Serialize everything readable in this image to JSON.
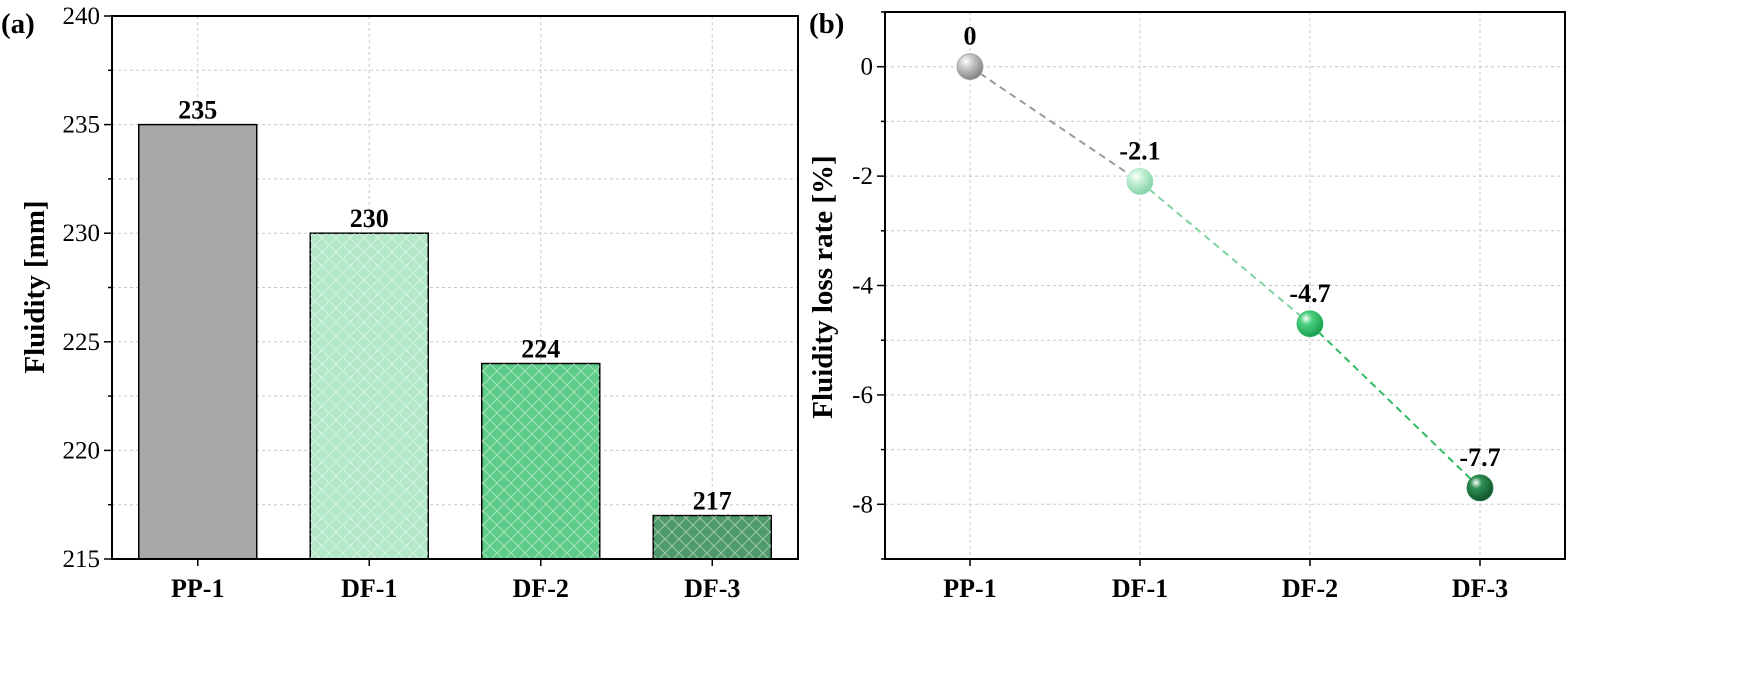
{
  "chart_data": [
    {
      "panel": "(a)",
      "type": "bar",
      "categories": [
        "PP-1",
        "DF-1",
        "DF-2",
        "DF-3"
      ],
      "values": [
        235,
        230,
        224,
        217
      ],
      "value_labels": [
        "235",
        "230",
        "224",
        "217"
      ],
      "ylabel": "Fluidity [mm]",
      "xlabel": "",
      "ylim": [
        215,
        240
      ],
      "yticks": [
        215,
        220,
        225,
        230,
        235,
        240
      ],
      "grid": true,
      "colors": [
        "#a8a8a8",
        "#b2e8c8",
        "#5ccc88",
        "#4e9a6a"
      ],
      "hatched": [
        false,
        true,
        true,
        true
      ]
    },
    {
      "panel": "(b)",
      "type": "scatter",
      "categories": [
        "PP-1",
        "DF-1",
        "DF-2",
        "DF-3"
      ],
      "values": [
        0,
        -2.1,
        -4.7,
        -7.7
      ],
      "value_labels": [
        "0",
        "-2.1",
        "-4.7",
        "-7.7"
      ],
      "ylabel": "Fluidity loss rate [%]",
      "xlabel": "",
      "ylim": [
        -9,
        1
      ],
      "yticks": [
        -8,
        -6,
        -4,
        -2,
        0
      ],
      "grid": true,
      "connector": "dashed",
      "colors": [
        "#a0a0a0",
        "#a8e6c4",
        "#2ebd64",
        "#1f7a43"
      ]
    }
  ]
}
